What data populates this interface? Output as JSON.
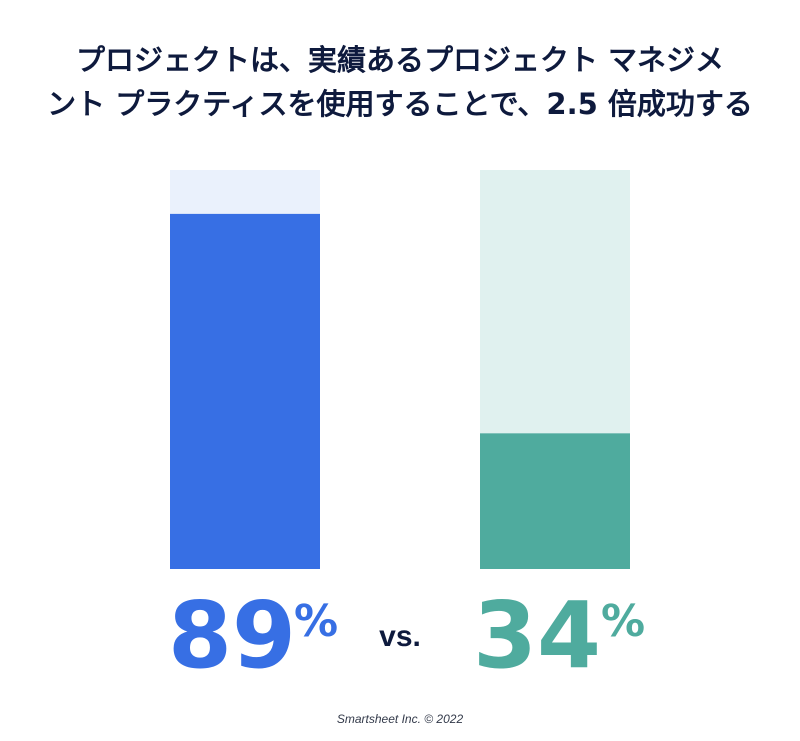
{
  "title": {
    "line1": "プロジェクトは、実績あるプロジェクト マネジメ",
    "line2": "ント プラクティスを使用することで、2.5 倍成功する"
  },
  "chart_data": {
    "type": "bar",
    "ylim": [
      0,
      100
    ],
    "series": [
      {
        "value": 89,
        "label": "89",
        "unit": "%",
        "color": "#376fe4",
        "track_color": "#eaf1fc"
      },
      {
        "value": 34,
        "label": "34",
        "unit": "%",
        "color": "#4fab9e",
        "track_color": "#e0f1ef"
      }
    ],
    "separator": "vs.",
    "value_color_dark": "#0e1a3d"
  },
  "footer": {
    "credit": "Smartsheet Inc. © 2022"
  }
}
